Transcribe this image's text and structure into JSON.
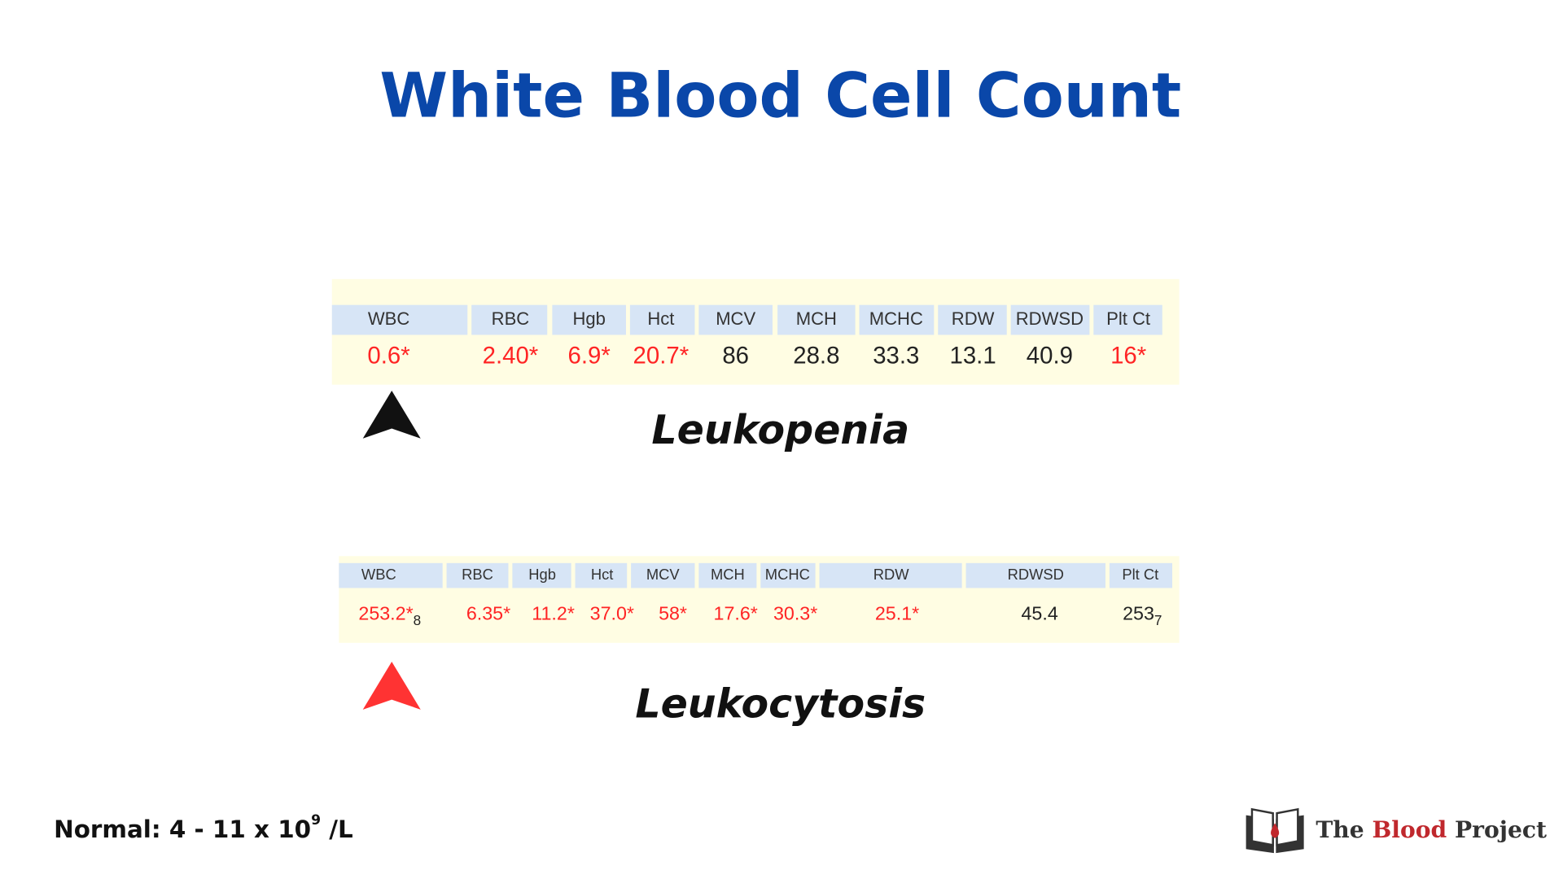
{
  "title": "White Blood Cell Count",
  "tables": [
    {
      "headers": [
        "WBC",
        "RBC",
        "Hgb",
        "Hct",
        "MCV",
        "MCH",
        "MCHC",
        "RDW",
        "RDWSD",
        "Plt Ct"
      ],
      "values": [
        {
          "text": "0.6*"
        },
        {
          "text": "2.40*"
        },
        {
          "text": "6.9*"
        },
        {
          "text": "20.7*"
        },
        {
          "text": "86"
        },
        {
          "text": "28.8"
        },
        {
          "text": "33.3"
        },
        {
          "text": "13.1"
        },
        {
          "text": "40.9"
        },
        {
          "text": "16*"
        }
      ],
      "label": "Leukopenia",
      "arrow_color": "#111111"
    },
    {
      "headers": [
        "WBC",
        "RBC",
        "Hgb",
        "Hct",
        "MCV",
        "MCH",
        "MCHC",
        "RDW",
        "RDWSD",
        "Plt Ct"
      ],
      "values": [
        {
          "text": "253.2*",
          "sub": "8"
        },
        {
          "text": "6.35*"
        },
        {
          "text": "11.2*"
        },
        {
          "text": "37.0*"
        },
        {
          "text": "58*"
        },
        {
          "text": "17.6*"
        },
        {
          "text": "30.3*"
        },
        {
          "text": "25.1*"
        },
        {
          "text": "45.4"
        },
        {
          "text": "253",
          "sub": "7"
        }
      ],
      "label": "Leukocytosis",
      "arrow_color": "#ff3333"
    }
  ],
  "flag_color": "#ff2424",
  "text_color": "#222222",
  "normal": {
    "text": "Normal: 4 - 11 x 10",
    "sup": "9",
    "unit": " /L"
  },
  "logo": {
    "parts": [
      "The ",
      "Blood",
      " Project"
    ],
    "accent": "#c0282d"
  }
}
